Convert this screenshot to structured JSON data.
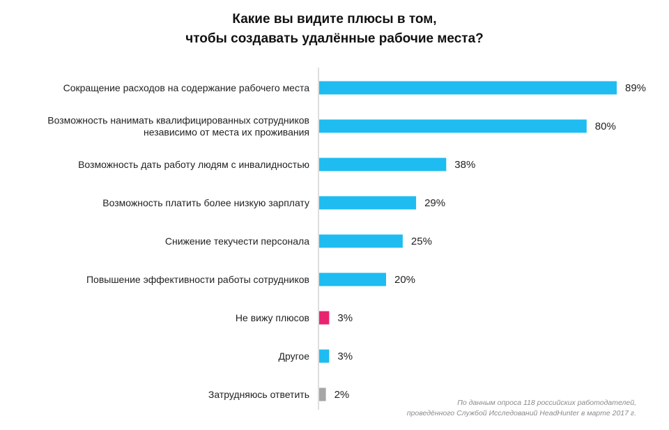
{
  "title": {
    "line1": "Какие вы видите плюсы в том,",
    "line2": "чтобы создавать удалённые рабочие места?"
  },
  "source": {
    "line1": "По данным опроса 118 российских работодателей,",
    "line2": "проведённого Службой Исследований HeadHunter в марте 2017 г."
  },
  "chart_data": {
    "type": "bar",
    "orientation": "horizontal",
    "title": "Какие вы видите плюсы в том, чтобы создавать удалённые рабочие места?",
    "xlim": [
      0,
      100
    ],
    "grid": false,
    "legend": "none",
    "unit": "%",
    "categories": [
      [
        "Сокращение расходов на содержание рабочего места"
      ],
      [
        "Возможность нанимать квалифицированных сотрудников",
        "независимо от места их проживания"
      ],
      [
        "Возможность дать работу людям с инвалидностью"
      ],
      [
        "Возможность платить более низкую зарплату"
      ],
      [
        "Снижение текучести персонала"
      ],
      [
        "Повышение эффективности работы сотрудников"
      ],
      [
        "Не вижу плюсов"
      ],
      [
        "Другое"
      ],
      [
        "Затрудняюсь ответить"
      ]
    ],
    "values": [
      89,
      80,
      38,
      29,
      25,
      20,
      3,
      3,
      2
    ],
    "value_labels": [
      "89%",
      "80%",
      "38%",
      "29%",
      "25%",
      "20%",
      "3%",
      "3%",
      "2%"
    ],
    "colors": [
      "#1ebcf1",
      "#1ebcf1",
      "#1ebcf1",
      "#1ebcf1",
      "#1ebcf1",
      "#1ebcf1",
      "#e8246f",
      "#1ebcf1",
      "#a6a6a6"
    ]
  }
}
